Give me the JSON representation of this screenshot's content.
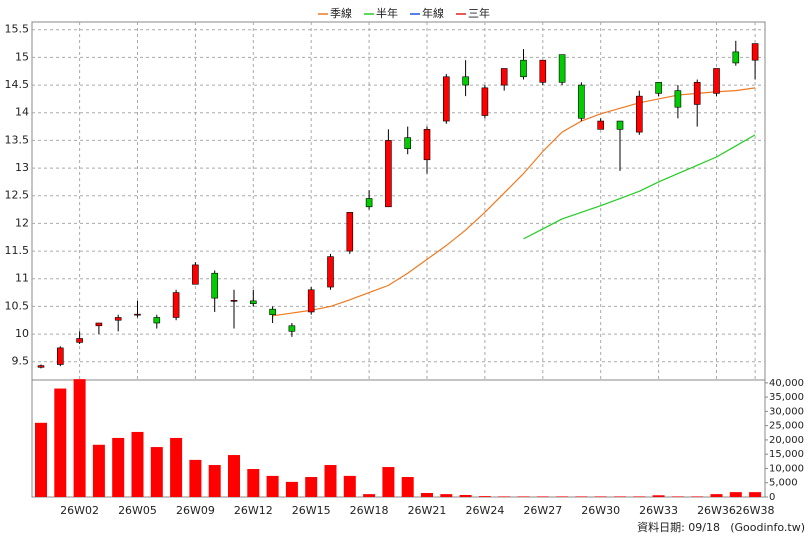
{
  "chart_data": {
    "type": "candlestick",
    "categories": [
      null,
      null,
      "26W02",
      null,
      null,
      "26W05",
      null,
      null,
      "26W09",
      null,
      null,
      "26W12",
      null,
      null,
      "26W15",
      null,
      null,
      "26W18",
      null,
      null,
      "26W21",
      null,
      null,
      "26W24",
      null,
      null,
      "26W27",
      null,
      null,
      "26W30",
      null,
      null,
      "26W33",
      null,
      null,
      "26W36",
      null,
      "26W38"
    ],
    "open": [
      9.4,
      9.45,
      9.85,
      10.15,
      10.25,
      10.35,
      10.3,
      10.3,
      10.9,
      11.1,
      10.6,
      10.6,
      10.45,
      10.15,
      10.4,
      10.85,
      11.5,
      12.45,
      12.3,
      13.55,
      13.15,
      13.85,
      14.65,
      13.95,
      14.5,
      14.95,
      14.55,
      15.05,
      14.5,
      13.7,
      13.85,
      13.65,
      14.55,
      14.4,
      14.15,
      14.35,
      15.1,
      14.95
    ],
    "high": [
      9.45,
      9.78,
      10.05,
      10.2,
      10.35,
      10.6,
      10.35,
      10.8,
      11.3,
      11.15,
      10.8,
      10.8,
      10.5,
      10.2,
      10.85,
      11.45,
      12.2,
      12.6,
      13.7,
      13.75,
      13.75,
      14.7,
      14.95,
      14.5,
      14.8,
      15.15,
      14.95,
      15.05,
      14.55,
      13.9,
      13.85,
      14.4,
      14.55,
      14.5,
      14.6,
      14.8,
      15.3,
      15.25
    ],
    "low": [
      9.38,
      9.42,
      9.82,
      10.0,
      10.05,
      10.3,
      10.1,
      10.25,
      10.9,
      10.4,
      10.1,
      10.5,
      10.2,
      9.95,
      10.35,
      10.8,
      11.45,
      12.25,
      12.3,
      13.25,
      12.9,
      13.8,
      14.3,
      13.9,
      14.4,
      14.6,
      14.5,
      14.5,
      13.85,
      13.7,
      12.95,
      13.6,
      14.3,
      13.9,
      13.75,
      14.3,
      14.85,
      14.6
    ],
    "close": [
      9.43,
      9.75,
      9.92,
      10.2,
      10.3,
      10.36,
      10.2,
      10.75,
      11.25,
      10.65,
      10.61,
      10.55,
      10.35,
      10.05,
      10.8,
      11.4,
      12.2,
      12.3,
      13.5,
      13.35,
      13.7,
      14.65,
      14.5,
      14.45,
      14.8,
      14.65,
      14.95,
      14.55,
      13.9,
      13.85,
      13.7,
      14.3,
      14.35,
      14.1,
      14.55,
      14.8,
      14.9,
      15.25
    ],
    "volume": [
      26000,
      38000,
      41300,
      18300,
      20700,
      22800,
      17500,
      20700,
      13000,
      11200,
      14700,
      9800,
      7400,
      5300,
      7000,
      11200,
      7400,
      1000,
      10500,
      7000,
      1400,
      1000,
      700,
      300,
      200,
      200,
      200,
      200,
      200,
      200,
      200,
      200,
      600,
      200,
      200,
      1000,
      1700,
      1700
    ],
    "up_color": "#ff0000",
    "down_color": "#00cc00",
    "volume_color": "#ff0000",
    "series": [
      {
        "name": "季線",
        "color": "#f07820",
        "values": [
          null,
          null,
          null,
          null,
          null,
          null,
          null,
          null,
          null,
          null,
          null,
          null,
          10.33,
          10.38,
          10.43,
          10.5,
          10.62,
          10.75,
          10.88,
          11.1,
          11.35,
          11.6,
          11.88,
          12.2,
          12.55,
          12.9,
          13.3,
          13.65,
          13.85,
          13.98,
          14.08,
          14.18,
          14.25,
          14.32,
          14.35,
          14.38,
          14.4,
          14.45
        ]
      },
      {
        "name": "半年",
        "color": "#22cc22",
        "values": [
          null,
          null,
          null,
          null,
          null,
          null,
          null,
          null,
          null,
          null,
          null,
          null,
          null,
          null,
          null,
          null,
          null,
          null,
          null,
          null,
          null,
          null,
          null,
          null,
          null,
          11.72,
          11.9,
          12.08,
          12.2,
          12.32,
          12.45,
          12.58,
          12.75,
          12.9,
          13.05,
          13.2,
          13.4,
          13.6
        ]
      },
      {
        "name": "年線",
        "color": "#2255dd",
        "values": [
          null,
          null,
          null,
          null,
          null,
          null,
          null,
          null,
          null,
          null,
          null,
          null,
          null,
          null,
          null,
          null,
          null,
          null,
          null,
          null,
          null,
          null,
          null,
          null,
          null,
          null,
          null,
          null,
          null,
          null,
          null,
          null,
          null,
          null,
          null,
          null,
          null,
          null
        ]
      },
      {
        "name": "三年",
        "color": "#dd2222",
        "values": [
          null,
          null,
          null,
          null,
          null,
          null,
          null,
          null,
          null,
          null,
          null,
          null,
          null,
          null,
          null,
          null,
          null,
          null,
          null,
          null,
          null,
          null,
          null,
          null,
          null,
          null,
          null,
          null,
          null,
          null,
          null,
          null,
          null,
          null,
          null,
          null,
          null,
          null
        ]
      }
    ],
    "ylim": [
      9.17,
      15.64
    ],
    "yticks": [
      9.5,
      10,
      10.5,
      11,
      11.5,
      12,
      12.5,
      13,
      13.5,
      14,
      14.5,
      15,
      15.5
    ],
    "y2lim": [
      0,
      41000
    ],
    "y2ticks": [
      0,
      {
        "value": 5000,
        "label": "5,000"
      },
      {
        "value": 10000,
        "label": "10,000"
      },
      {
        "value": 15000,
        "label": "15,000"
      },
      {
        "value": 20000,
        "label": "20,000"
      },
      {
        "value": 25000,
        "label": "25,000"
      },
      {
        "value": 30000,
        "label": "30,000"
      },
      {
        "value": 35000,
        "label": "35,000"
      },
      {
        "value": 40000,
        "label": "40,000"
      }
    ],
    "grid": true,
    "footnote": "資料日期: 09/18",
    "source": "(Goodinfo.tw)"
  }
}
